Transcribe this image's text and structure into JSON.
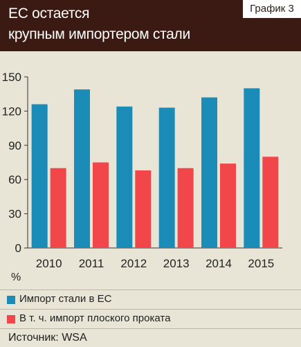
{
  "header": {
    "title_line1": "ЕС остается",
    "title_line2": "крупным импортером стали",
    "badge": "График 3"
  },
  "unit_label": "%",
  "legend": [
    {
      "label": "Импорт стали в ЕС",
      "color": "#1b8bb8"
    },
    {
      "label": "В т. ч. импорт плоского проката",
      "color": "#f2474a"
    }
  ],
  "source": "Источник: WSA",
  "chart_data": {
    "type": "bar",
    "categories": [
      "2010",
      "2011",
      "2012",
      "2013",
      "2014",
      "2015"
    ],
    "series": [
      {
        "name": "Импорт стали в ЕС",
        "color": "#1b8bb8",
        "values": [
          126,
          139,
          124,
          123,
          132,
          140
        ]
      },
      {
        "name": "В т. ч. импорт плоского проката",
        "color": "#f2474a",
        "values": [
          70,
          75,
          68,
          70,
          74,
          80
        ]
      }
    ],
    "yticks": [
      0,
      30,
      60,
      90,
      120,
      150
    ],
    "ylim": [
      0,
      150
    ],
    "ylabel": "%",
    "grid": false,
    "legend_position": "bottom"
  }
}
